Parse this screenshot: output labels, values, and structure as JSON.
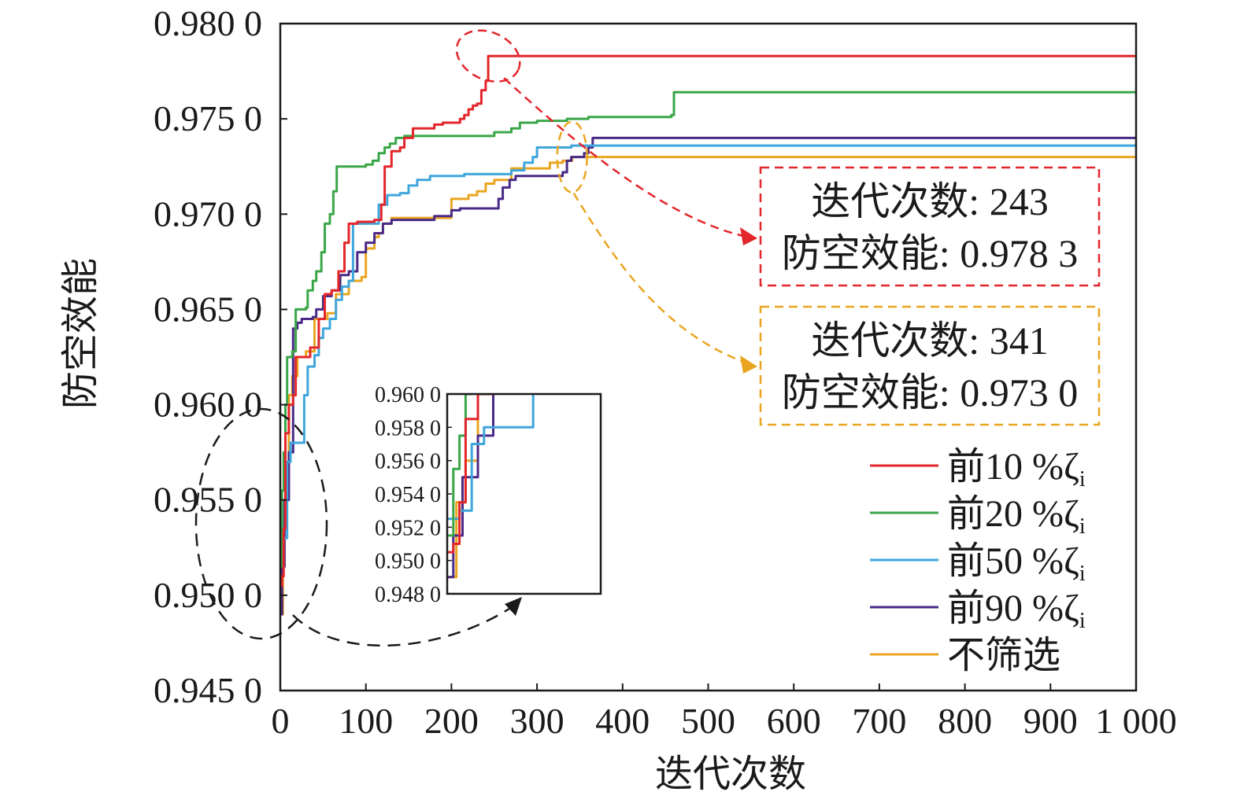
{
  "chart_data": {
    "type": "line",
    "xlabel": "迭代次数",
    "ylabel": "防空效能",
    "xlim": [
      0,
      1000
    ],
    "ylim": [
      0.945,
      0.98
    ],
    "x_ticks": [
      0,
      100,
      200,
      300,
      400,
      500,
      600,
      700,
      800,
      900,
      1000
    ],
    "x_tick_labels": [
      "0",
      "100",
      "200",
      "300",
      "400",
      "500",
      "600",
      "700",
      "800",
      "900",
      "1 000"
    ],
    "y_ticks": [
      0.945,
      0.95,
      0.955,
      0.96,
      0.965,
      0.97,
      0.975,
      0.98
    ],
    "y_tick_labels": [
      "0.945 0",
      "0.950 0",
      "0.955 0",
      "0.960 0",
      "0.965 0",
      "0.970 0",
      "0.975 0",
      "0.980 0"
    ],
    "grid": false,
    "legend_position": "bottom-right",
    "series": [
      {
        "name": "前10 %ζi",
        "legend_main": "前10 %ζ",
        "legend_sub": "i",
        "color": "#e3262b",
        "points": [
          [
            0,
            0.9505
          ],
          [
            2,
            0.951
          ],
          [
            4,
            0.9535
          ],
          [
            6,
            0.9585
          ],
          [
            10,
            0.96
          ],
          [
            15,
            0.9605
          ],
          [
            18,
            0.9625
          ],
          [
            30,
            0.9625
          ],
          [
            35,
            0.963
          ],
          [
            45,
            0.9645
          ],
          [
            52,
            0.9658
          ],
          [
            60,
            0.966
          ],
          [
            68,
            0.967
          ],
          [
            75,
            0.9685
          ],
          [
            80,
            0.9695
          ],
          [
            90,
            0.9696
          ],
          [
            110,
            0.9697
          ],
          [
            118,
            0.9705
          ],
          [
            122,
            0.9725
          ],
          [
            130,
            0.9733
          ],
          [
            140,
            0.9735
          ],
          [
            145,
            0.974
          ],
          [
            155,
            0.9745
          ],
          [
            180,
            0.9747
          ],
          [
            190,
            0.9748
          ],
          [
            205,
            0.9748
          ],
          [
            210,
            0.975
          ],
          [
            215,
            0.9752
          ],
          [
            220,
            0.9755
          ],
          [
            225,
            0.9757
          ],
          [
            230,
            0.9758
          ],
          [
            235,
            0.9765
          ],
          [
            240,
            0.977
          ],
          [
            243,
            0.9783
          ],
          [
            1000,
            0.9783
          ]
        ]
      },
      {
        "name": "前20 %ζi",
        "legend_main": "前20 %ζ",
        "legend_sub": "i",
        "color": "#3aa648",
        "points": [
          [
            0,
            0.9515
          ],
          [
            2,
            0.9555
          ],
          [
            4,
            0.9575
          ],
          [
            6,
            0.96
          ],
          [
            8,
            0.9625
          ],
          [
            14,
            0.9628
          ],
          [
            18,
            0.965
          ],
          [
            30,
            0.9651
          ],
          [
            32,
            0.966
          ],
          [
            38,
            0.9665
          ],
          [
            42,
            0.967
          ],
          [
            48,
            0.968
          ],
          [
            52,
            0.9695
          ],
          [
            58,
            0.97
          ],
          [
            62,
            0.9712
          ],
          [
            66,
            0.9725
          ],
          [
            90,
            0.9725
          ],
          [
            100,
            0.9726
          ],
          [
            108,
            0.9728
          ],
          [
            115,
            0.9732
          ],
          [
            122,
            0.9735
          ],
          [
            128,
            0.9737
          ],
          [
            135,
            0.974
          ],
          [
            145,
            0.9741
          ],
          [
            190,
            0.9741
          ],
          [
            250,
            0.9743
          ],
          [
            270,
            0.9745
          ],
          [
            280,
            0.9748
          ],
          [
            300,
            0.9749
          ],
          [
            335,
            0.975
          ],
          [
            360,
            0.9751
          ],
          [
            457,
            0.9752
          ],
          [
            460,
            0.9764
          ],
          [
            1000,
            0.9764
          ]
        ]
      },
      {
        "name": "前50 %ζi",
        "legend_main": "前50 %ζ",
        "legend_sub": "i",
        "color": "#3fa6dc",
        "points": [
          [
            0,
            0.9525
          ],
          [
            4,
            0.953
          ],
          [
            8,
            0.957
          ],
          [
            12,
            0.958
          ],
          [
            25,
            0.958
          ],
          [
            28,
            0.9605
          ],
          [
            32,
            0.962
          ],
          [
            40,
            0.9626
          ],
          [
            45,
            0.9635
          ],
          [
            50,
            0.964
          ],
          [
            58,
            0.9645
          ],
          [
            65,
            0.9655
          ],
          [
            72,
            0.9662
          ],
          [
            80,
            0.9665
          ],
          [
            85,
            0.9695
          ],
          [
            110,
            0.9695
          ],
          [
            115,
            0.9705
          ],
          [
            125,
            0.971
          ],
          [
            140,
            0.9711
          ],
          [
            150,
            0.9715
          ],
          [
            160,
            0.9718
          ],
          [
            175,
            0.972
          ],
          [
            200,
            0.972
          ],
          [
            215,
            0.9721
          ],
          [
            240,
            0.9721
          ],
          [
            270,
            0.9723
          ],
          [
            285,
            0.9727
          ],
          [
            295,
            0.973
          ],
          [
            300,
            0.9735
          ],
          [
            340,
            0.9736
          ],
          [
            1000,
            0.9736
          ]
        ]
      },
      {
        "name": "前90 %ζi",
        "legend_main": "前90 %ζ",
        "legend_sub": "i",
        "color": "#4a2a86",
        "points": [
          [
            0,
            0.949
          ],
          [
            2,
            0.9515
          ],
          [
            5,
            0.955
          ],
          [
            10,
            0.9575
          ],
          [
            15,
            0.964
          ],
          [
            20,
            0.9643
          ],
          [
            25,
            0.9645
          ],
          [
            38,
            0.9646
          ],
          [
            42,
            0.965
          ],
          [
            50,
            0.9657
          ],
          [
            60,
            0.966
          ],
          [
            70,
            0.9668
          ],
          [
            80,
            0.967
          ],
          [
            90,
            0.968
          ],
          [
            100,
            0.9685
          ],
          [
            110,
            0.969
          ],
          [
            120,
            0.9695
          ],
          [
            130,
            0.9697
          ],
          [
            180,
            0.9699
          ],
          [
            200,
            0.9702
          ],
          [
            210,
            0.9703
          ],
          [
            250,
            0.9703
          ],
          [
            255,
            0.9708
          ],
          [
            260,
            0.9714
          ],
          [
            268,
            0.9718
          ],
          [
            275,
            0.972
          ],
          [
            300,
            0.972
          ],
          [
            330,
            0.9722
          ],
          [
            335,
            0.9728
          ],
          [
            340,
            0.973
          ],
          [
            355,
            0.9732
          ],
          [
            360,
            0.9735
          ],
          [
            365,
            0.974
          ],
          [
            1000,
            0.974
          ]
        ]
      },
      {
        "name": "不筛选",
        "legend_main": "不筛选",
        "legend_sub": "",
        "color": "#eaa520",
        "points": [
          [
            0,
            0.949
          ],
          [
            3,
            0.9535
          ],
          [
            6,
            0.956
          ],
          [
            10,
            0.9605
          ],
          [
            14,
            0.9615
          ],
          [
            20,
            0.9625
          ],
          [
            30,
            0.9628
          ],
          [
            40,
            0.9645
          ],
          [
            45,
            0.9645
          ],
          [
            55,
            0.9648
          ],
          [
            65,
            0.9658
          ],
          [
            80,
            0.9665
          ],
          [
            95,
            0.9667
          ],
          [
            100,
            0.9682
          ],
          [
            110,
            0.9688
          ],
          [
            115,
            0.969
          ],
          [
            120,
            0.9695
          ],
          [
            130,
            0.9698
          ],
          [
            185,
            0.9698
          ],
          [
            200,
            0.9708
          ],
          [
            220,
            0.971
          ],
          [
            230,
            0.9712
          ],
          [
            240,
            0.9716
          ],
          [
            250,
            0.9718
          ],
          [
            270,
            0.9724
          ],
          [
            300,
            0.9724
          ],
          [
            315,
            0.9727
          ],
          [
            330,
            0.9728
          ],
          [
            341,
            0.973
          ],
          [
            1000,
            0.973
          ]
        ]
      }
    ],
    "annotations": [
      {
        "line1": "迭代次数: 243",
        "line2": "防空效能: 0.978 3",
        "color": "#e3262b",
        "x": 243,
        "y": 0.9783
      },
      {
        "line1": "迭代次数: 341",
        "line2": "防空效能: 0.973 0",
        "color": "#eaa520",
        "x": 341,
        "y": 0.973
      }
    ],
    "inset": {
      "ylim": [
        0.948,
        0.96
      ],
      "xlim": [
        0,
        50
      ],
      "y_ticks": [
        0.948,
        0.95,
        0.952,
        0.954,
        0.956,
        0.958,
        0.96
      ],
      "y_tick_labels": [
        "0.948 0",
        "0.950 0",
        "0.952 0",
        "0.954 0",
        "0.956 0",
        "0.958 0",
        "0.960 0"
      ]
    }
  }
}
